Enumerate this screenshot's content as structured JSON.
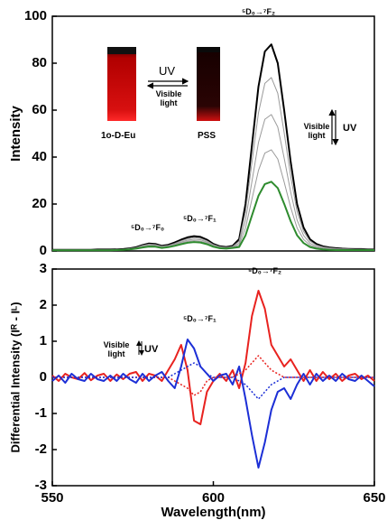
{
  "chart_data": [
    {
      "type": "line",
      "ylabel": "Intensity",
      "xlim": [
        550,
        650
      ],
      "ylim": [
        0,
        100
      ],
      "yticks": [
        0,
        20,
        40,
        60,
        80,
        100
      ],
      "x": [
        550,
        552,
        554,
        556,
        558,
        560,
        562,
        564,
        566,
        568,
        570,
        572,
        574,
        576,
        578,
        580,
        582,
        584,
        586,
        588,
        590,
        592,
        594,
        596,
        598,
        600,
        602,
        604,
        606,
        608,
        610,
        612,
        614,
        616,
        618,
        620,
        622,
        624,
        626,
        628,
        630,
        632,
        634,
        636,
        638,
        640,
        642,
        644,
        646,
        648,
        650
      ],
      "series": [
        {
          "color": "#000000",
          "width": 2,
          "values": [
            0.5,
            0.5,
            0.5,
            0.5,
            0.5,
            0.5,
            0.5,
            0.6,
            0.6,
            0.6,
            0.7,
            0.8,
            1.1,
            1.6,
            2.5,
            3.2,
            3.0,
            2.2,
            2.6,
            3.6,
            4.8,
            5.8,
            6.3,
            6.0,
            4.8,
            3.0,
            2.0,
            1.7,
            2.2,
            5,
            20,
            45,
            70,
            85,
            88,
            80,
            60,
            38,
            20,
            10,
            5,
            3,
            2,
            1.5,
            1.2,
            1,
            0.9,
            0.8,
            0.8,
            0.7,
            0.7
          ]
        },
        {
          "color": "#9a9a9a",
          "width": 1,
          "values": [
            0.5,
            0.5,
            0.5,
            0.5,
            0.5,
            0.5,
            0.5,
            0.5,
            0.5,
            0.5,
            0.6,
            0.7,
            1.0,
            1.4,
            2.3,
            2.9,
            2.7,
            2.0,
            2.3,
            3.2,
            4.3,
            5.2,
            5.7,
            5.4,
            4.3,
            2.7,
            1.8,
            1.5,
            1.9,
            4.2,
            16.8,
            37.8,
            58.8,
            71.4,
            73.9,
            67.2,
            50.4,
            31.9,
            16.8,
            8.4,
            4.2,
            2.5,
            1.7,
            1.3,
            1.0,
            0.9,
            0.8,
            0.7,
            0.7,
            0.6,
            0.6
          ]
        },
        {
          "color": "#9a9a9a",
          "width": 1,
          "values": [
            0.4,
            0.4,
            0.4,
            0.4,
            0.4,
            0.4,
            0.4,
            0.4,
            0.4,
            0.4,
            0.6,
            0.6,
            0.9,
            1.3,
            2.0,
            2.6,
            2.4,
            1.8,
            2.1,
            2.9,
            3.8,
            4.6,
            5.0,
            4.8,
            3.8,
            2.4,
            1.6,
            1.4,
            1.7,
            3.3,
            13.2,
            29.7,
            46.2,
            56.1,
            58.1,
            52.8,
            39.6,
            25.1,
            13.2,
            6.6,
            3.3,
            2.0,
            1.3,
            1.0,
            0.8,
            0.7,
            0.7,
            0.6,
            0.6,
            0.6,
            0.6
          ]
        },
        {
          "color": "#9a9a9a",
          "width": 1,
          "values": [
            0.4,
            0.4,
            0.4,
            0.4,
            0.4,
            0.4,
            0.4,
            0.4,
            0.4,
            0.4,
            0.5,
            0.6,
            0.8,
            1.1,
            1.8,
            2.2,
            2.1,
            1.5,
            1.8,
            2.5,
            3.4,
            4.1,
            4.4,
            4.2,
            3.4,
            2.1,
            1.4,
            1.2,
            1.5,
            2.5,
            9.8,
            22.1,
            34.3,
            41.7,
            43.1,
            39.2,
            29.4,
            18.6,
            9.8,
            4.9,
            2.5,
            1.5,
            1.0,
            0.8,
            0.6,
            0.5,
            0.5,
            0.5,
            0.5,
            0.5,
            0.5
          ]
        },
        {
          "color": "#2e8b2e",
          "width": 2,
          "values": [
            0.3,
            0.3,
            0.3,
            0.3,
            0.3,
            0.3,
            0.3,
            0.3,
            0.3,
            0.3,
            0.4,
            0.5,
            0.7,
            1.0,
            1.5,
            1.9,
            1.8,
            1.3,
            1.6,
            2.2,
            2.9,
            3.5,
            3.8,
            3.6,
            2.9,
            1.8,
            1.2,
            1.0,
            1.3,
            1.7,
            6.7,
            15.1,
            23.5,
            28.5,
            29.5,
            26.8,
            20.1,
            12.7,
            6.7,
            3.4,
            1.7,
            1.0,
            0.7,
            0.5,
            0.4,
            0.4,
            0.4,
            0.4,
            0.4,
            0.4,
            0.4
          ]
        }
      ],
      "annotations": [
        "⁵D₀→⁷F₂",
        "⁵D₀→⁷F₀",
        "⁵D₀→⁷F₁",
        "Visible light",
        "UV"
      ],
      "inset": {
        "left_label": "1o-D-Eu",
        "right_label": "PSS",
        "forward": "UV",
        "backward": "Visible light"
      }
    },
    {
      "type": "line",
      "ylabel": "Differential Intensity (Iᴿ - Iᴸ)",
      "xlabel": "Wavelength(nm)",
      "xlim": [
        550,
        650
      ],
      "xticks": [
        550,
        600,
        650
      ],
      "ylim": [
        -3,
        3
      ],
      "yticks": [
        -3,
        -2,
        -1,
        0,
        1,
        2,
        3
      ],
      "x": [
        550,
        552,
        554,
        556,
        558,
        560,
        562,
        564,
        566,
        568,
        570,
        572,
        574,
        576,
        578,
        580,
        582,
        584,
        586,
        588,
        590,
        592,
        594,
        596,
        598,
        600,
        602,
        604,
        606,
        608,
        610,
        612,
        614,
        616,
        618,
        620,
        622,
        624,
        626,
        628,
        630,
        632,
        634,
        636,
        638,
        640,
        642,
        644,
        646,
        648,
        650
      ],
      "series": [
        {
          "color": "#e8221f",
          "width": 2,
          "values": [
            0.05,
            -0.1,
            0.1,
            0,
            -0.05,
            0.12,
            -0.08,
            0.05,
            0.1,
            -0.1,
            0.08,
            -0.05,
            0.1,
            0.15,
            -0.1,
            0.1,
            0.05,
            -0.1,
            0.2,
            0.5,
            0.9,
            0.2,
            -1.2,
            -1.3,
            -0.4,
            -0.1,
            0.1,
            -0.1,
            0.2,
            -0.3,
            0.4,
            1.7,
            2.4,
            1.9,
            0.9,
            0.6,
            0.3,
            0.5,
            0.2,
            -0.1,
            0.2,
            -0.1,
            0.15,
            -0.05,
            0.1,
            -0.1,
            0.05,
            0.1,
            -0.05,
            0.05,
            -0.1
          ]
        },
        {
          "color": "#1c2fd6",
          "width": 2,
          "values": [
            -0.1,
            0.05,
            -0.15,
            0.1,
            -0.05,
            -0.1,
            0.1,
            -0.05,
            -0.1,
            0.05,
            -0.1,
            0.1,
            -0.05,
            -0.15,
            0.1,
            -0.1,
            0.05,
            0.15,
            -0.1,
            -0.3,
            0.3,
            1.05,
            0.8,
            0.3,
            0.1,
            -0.1,
            0.05,
            0.1,
            -0.2,
            0.3,
            -0.6,
            -1.6,
            -2.5,
            -1.8,
            -0.9,
            -0.4,
            -0.3,
            -0.6,
            -0.2,
            0.1,
            -0.2,
            0.1,
            -0.1,
            0.05,
            -0.1,
            0.1,
            -0.05,
            -0.1,
            0.05,
            -0.1,
            -0.25
          ]
        },
        {
          "color": "#e8221f",
          "width": 1.5,
          "dashed": true,
          "values": [
            0,
            0,
            0,
            0,
            0,
            0,
            0,
            0,
            0,
            0,
            0,
            0,
            0,
            0,
            0,
            0,
            0,
            0,
            0,
            -0.1,
            -0.2,
            -0.3,
            -0.5,
            -0.4,
            -0.1,
            0,
            0,
            0,
            0,
            0.1,
            0.2,
            0.4,
            0.6,
            0.4,
            0.2,
            0.1,
            0,
            0,
            0,
            0,
            0,
            0,
            0,
            0,
            0,
            0,
            0,
            0,
            0,
            0,
            0
          ]
        },
        {
          "color": "#1c2fd6",
          "width": 1.5,
          "dashed": true,
          "values": [
            0,
            0,
            0,
            0,
            0,
            0,
            0,
            0,
            0,
            0,
            0,
            0,
            0,
            0,
            0,
            0,
            0,
            0,
            0,
            0.1,
            0.2,
            0.3,
            0.4,
            0.3,
            0.1,
            0,
            0,
            0,
            0,
            -0.1,
            -0.2,
            -0.4,
            -0.6,
            -0.4,
            -0.2,
            -0.1,
            0,
            0,
            0,
            0,
            0,
            0,
            0,
            0,
            0,
            0,
            0,
            0,
            0,
            0,
            0
          ]
        }
      ],
      "annotations": [
        "⁵D₀→⁷F₂",
        "⁵D₀→⁷F₁",
        "Visible light",
        "UV"
      ]
    }
  ]
}
